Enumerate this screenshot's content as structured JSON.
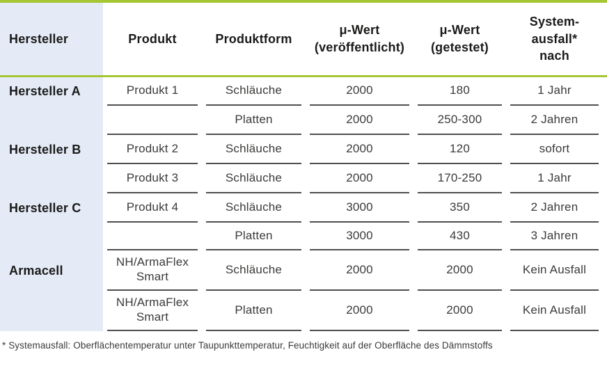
{
  "chart_data": {
    "type": "table",
    "title": "",
    "columns": [
      "Hersteller",
      "Produkt",
      "Produktform",
      "μ-Wert (veröffentlicht)",
      "μ-Wert (getestet)",
      "Systemausfall* nach"
    ],
    "rows": [
      [
        "Hersteller A",
        "Produkt 1",
        "Schläuche",
        "2000",
        "180",
        "1 Jahr"
      ],
      [
        "",
        "",
        "Platten",
        "2000",
        "250-300",
        "2 Jahren"
      ],
      [
        "Hersteller B",
        "Produkt 2",
        "Schläuche",
        "2000",
        "120",
        "sofort"
      ],
      [
        "",
        "Produkt 3",
        "Schläuche",
        "2000",
        "170-250",
        "1 Jahr"
      ],
      [
        "Hersteller C",
        "Produkt 4",
        "Schläuche",
        "3000",
        "350",
        "2 Jahren"
      ],
      [
        "",
        "",
        "Platten",
        "3000",
        "430",
        "3 Jahren"
      ],
      [
        "Armacell",
        "NH/ArmaFlex Smart",
        "Schläuche",
        "2000",
        "2000",
        "Kein Ausfall"
      ],
      [
        "",
        "NH/ArmaFlex Smart",
        "Platten",
        "2000",
        "2000",
        "Kein Ausfall"
      ]
    ],
    "footnote": "* Systemausfall: Oberflächentemperatur unter Taupunkttemperatur, Feuchtigkeit auf der Oberfläche des Dämmstoffs",
    "layout_hints": {
      "grid": "horizontal separators per column segment, no vertical lines",
      "first_column_highlight": true
    }
  },
  "table": {
    "headers": [
      "Hersteller",
      "Produkt",
      "Produktform",
      "μ-Wert\n(veröffentlicht)",
      "μ-Wert\n(getestet)",
      "System-\nausfall*\nnach"
    ],
    "rows": [
      {
        "hersteller": "Hersteller A",
        "produkt": "Produkt 1",
        "form": "Schläuche",
        "mu_published": "2000",
        "mu_tested": "180",
        "failure_after": "1 Jahr"
      },
      {
        "hersteller": "",
        "produkt": "",
        "form": "Platten",
        "mu_published": "2000",
        "mu_tested": "250-300",
        "failure_after": "2 Jahren"
      },
      {
        "hersteller": "Hersteller B",
        "produkt": "Produkt 2",
        "form": "Schläuche",
        "mu_published": "2000",
        "mu_tested": "120",
        "failure_after": "sofort"
      },
      {
        "hersteller": "",
        "produkt": "Produkt 3",
        "form": "Schläuche",
        "mu_published": "2000",
        "mu_tested": "170-250",
        "failure_after": "1 Jahr"
      },
      {
        "hersteller": "Hersteller C",
        "produkt": "Produkt 4",
        "form": "Schläuche",
        "mu_published": "3000",
        "mu_tested": "350",
        "failure_after": "2 Jahren"
      },
      {
        "hersteller": "",
        "produkt": "",
        "form": "Platten",
        "mu_published": "3000",
        "mu_tested": "430",
        "failure_after": "3 Jahren"
      },
      {
        "hersteller": "Armacell",
        "produkt": "NH/ArmaFlex\nSmart",
        "form": "Schläuche",
        "mu_published": "2000",
        "mu_tested": "2000",
        "failure_after": "Kein Ausfall"
      },
      {
        "hersteller": "",
        "produkt": "NH/ArmaFlex\nSmart",
        "form": "Platten",
        "mu_published": "2000",
        "mu_tested": "2000",
        "failure_after": "Kein Ausfall"
      }
    ],
    "footnote": "* Systemausfall: Oberflächentemperatur unter Taupunkttemperatur, Feuchtigkeit auf der Oberfläche des Dämmstoffs"
  },
  "colors": {
    "accent_green": "#a4c732",
    "hersteller_col_bg": "#e4ebf6",
    "separator_color": "#4d4e50",
    "head_text": "#1a1a19",
    "cell_text": "#3a3a39"
  }
}
